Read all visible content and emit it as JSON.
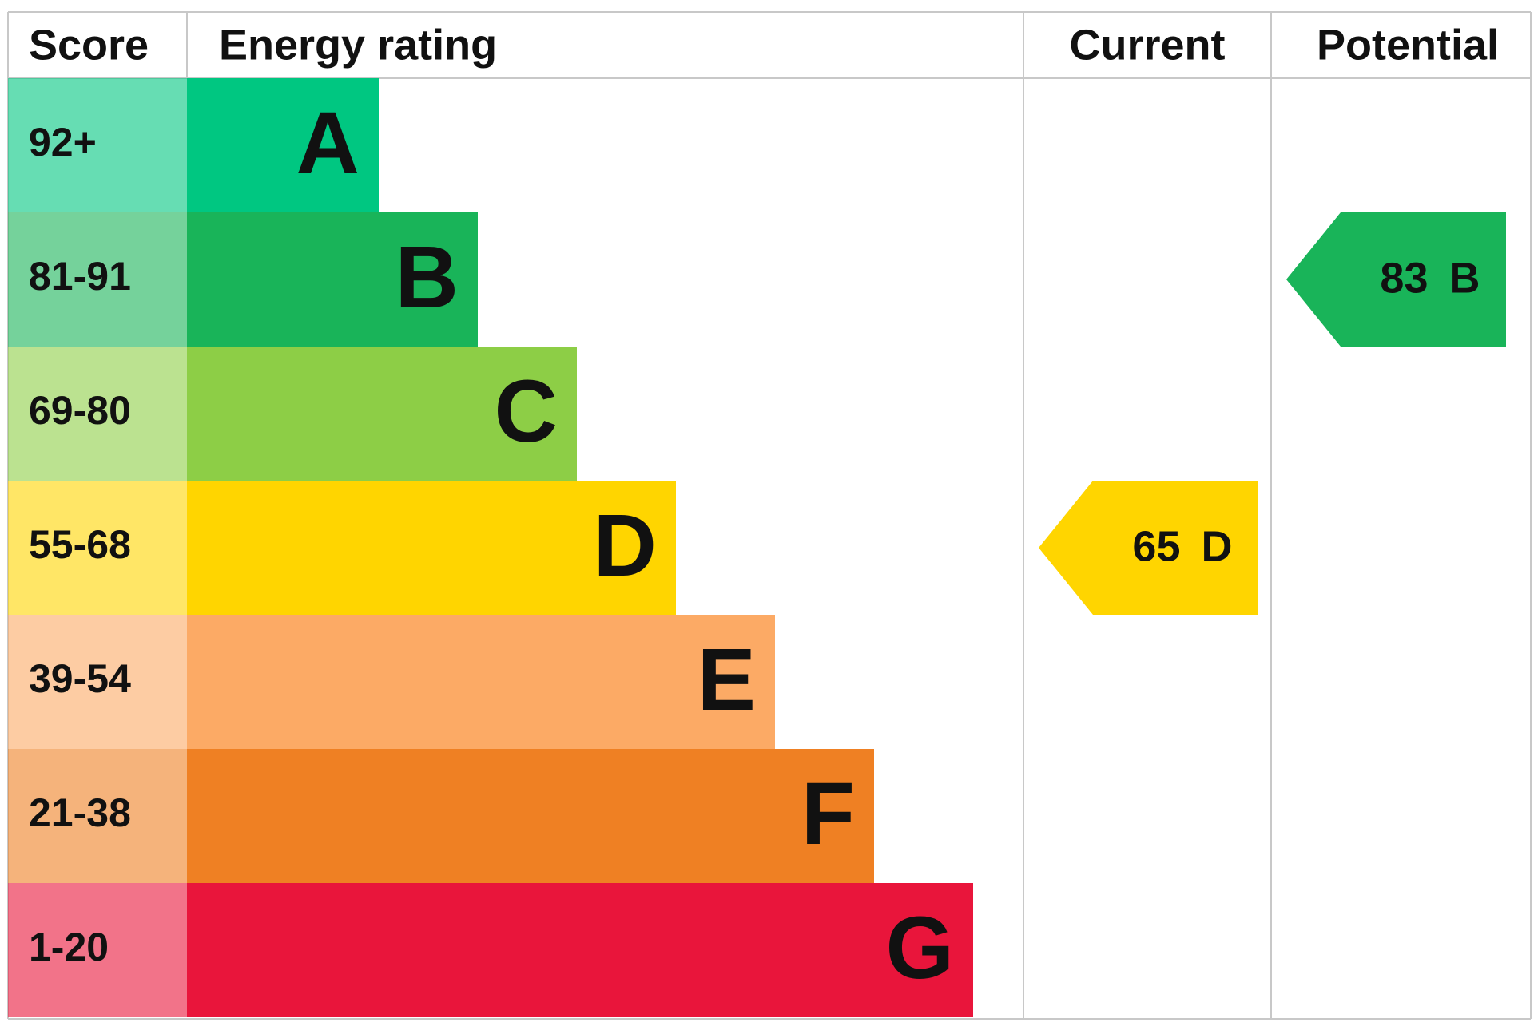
{
  "headers": [
    "Score",
    "Energy rating",
    "Current",
    "Potential"
  ],
  "bands": [
    {
      "score": "92+",
      "rating": "A",
      "color": "#00c781"
    },
    {
      "score": "81-91",
      "rating": "B",
      "color": "#19b459"
    },
    {
      "score": "69-80",
      "rating": "C",
      "color": "#8dce46"
    },
    {
      "score": "55-68",
      "rating": "D",
      "color": "#ffd500"
    },
    {
      "score": "39-54",
      "rating": "E",
      "color": "#fcaa65"
    },
    {
      "score": "21-38",
      "rating": "F",
      "color": "#ef8023"
    },
    {
      "score": "1-20",
      "rating": "G",
      "color": "#e9153b"
    }
  ],
  "current": {
    "value": 65,
    "rating": "D"
  },
  "potential": {
    "value": 83,
    "rating": "B"
  }
}
